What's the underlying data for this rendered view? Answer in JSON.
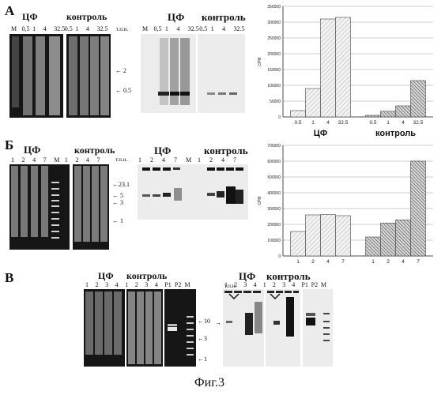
{
  "figure": {
    "caption": "Фиг.3",
    "panels": [
      {
        "letter": "А",
        "gel1": {
          "group1": "ЦФ",
          "group2": "контроль",
          "lanes": [
            "M",
            "0,5",
            "1",
            "4",
            "32.5",
            "0.5",
            "1",
            "4",
            "32.5"
          ],
          "unit": "т.п.н.",
          "markers": [
            "2",
            "0.5"
          ]
        },
        "blot": {
          "group1": "ЦФ",
          "group2": "контроль",
          "lanes": [
            "M",
            "0,5",
            "1",
            "4",
            "32.5",
            "0.5",
            "1",
            "4",
            "32.5"
          ]
        }
      },
      {
        "letter": "Б",
        "gel1": {
          "group1": "ЦФ",
          "group2": "контроль",
          "lanes": [
            "1",
            "2",
            "4",
            "7",
            "M",
            "1",
            "2",
            "4",
            "7"
          ],
          "unit": "т.п.н.",
          "markers": [
            "23.1",
            "5",
            "3",
            "1"
          ]
        },
        "blot": {
          "group1": "ЦФ",
          "group2": "контроль",
          "lanes": [
            "1",
            "2",
            "4",
            "7",
            "M",
            "1",
            "2",
            "4",
            "7"
          ]
        }
      },
      {
        "letter": "В",
        "gel1": {
          "lanes": [
            "1",
            "2",
            "3",
            "4",
            "1",
            "2",
            "3",
            "4",
            "P1",
            "P2",
            "M"
          ],
          "group1": "ЦФ",
          "group2": "контроль",
          "markers": [
            "10",
            "3",
            "1"
          ]
        },
        "blot": {
          "unit": "т.п.н.",
          "lanes": [
            "1",
            "2",
            "3",
            "4",
            "1",
            "2",
            "3",
            "4",
            "P1",
            "P2",
            "M"
          ],
          "group1": "ЦФ",
          "group2": "контроль"
        }
      }
    ]
  },
  "chart_data": [
    {
      "type": "bar",
      "ylabel": "CPM",
      "ylim": [
        0,
        350000
      ],
      "yticks": [
        "0",
        "50000",
        "100000",
        "150000",
        "200000",
        "250000",
        "300000",
        "350000"
      ],
      "grid": true,
      "groups": [
        {
          "label": "ЦФ",
          "categories": [
            "0.5",
            "1",
            "4",
            "32.5"
          ],
          "values": [
            20000,
            90000,
            310000,
            315000
          ],
          "color": "#d9d9d9"
        },
        {
          "label": "контроль",
          "categories": [
            "0.5",
            "1",
            "4",
            "32.5"
          ],
          "values": [
            5000,
            18000,
            35000,
            115000
          ],
          "color": "#8c8c8c"
        }
      ]
    },
    {
      "type": "bar",
      "ylabel": "CPM",
      "ylim": [
        0,
        700000
      ],
      "yticks": [
        "0",
        "100000",
        "200000",
        "300000",
        "400000",
        "500000",
        "600000",
        "700000"
      ],
      "grid": true,
      "groups": [
        {
          "label": "",
          "categories": [
            "1",
            "2",
            "4",
            "7"
          ],
          "values": [
            155000,
            260000,
            262000,
            255000
          ],
          "color": "#d9d9d9"
        },
        {
          "label": "",
          "categories": [
            "1",
            "2",
            "4",
            "7"
          ],
          "values": [
            120000,
            208000,
            228000,
            600000
          ],
          "color": "#8c8c8c"
        }
      ]
    }
  ]
}
